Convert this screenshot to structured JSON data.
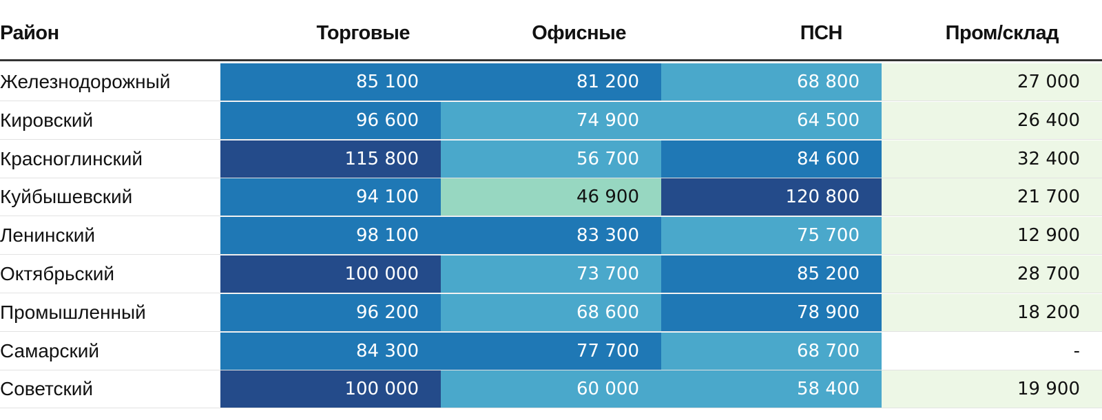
{
  "columns": [
    "Район",
    "Торговые",
    "Офисные",
    "ПСН",
    "Пром/склад"
  ],
  "colors": {
    "very_high": "#244b8a",
    "high": "#1f78b5",
    "mid": "#4aa8cb",
    "low": "#97d7c1",
    "warehouse": "#edf7e6",
    "none": "#ffffff",
    "text_light": "#ffffff",
    "text_dark": "#111111"
  },
  "chart_data": {
    "type": "table",
    "title": "",
    "columns": [
      "Район",
      "Торговые",
      "Офисные",
      "ПСН",
      "Пром/склад"
    ],
    "rows": [
      {
        "district": "Железнодорожный",
        "values": [
          "85 100",
          "81 200",
          "68 800",
          "27 000"
        ],
        "tones": [
          "high",
          "high",
          "mid",
          "warehouse"
        ]
      },
      {
        "district": "Кировский",
        "values": [
          "96 600",
          "74 900",
          "64 500",
          "26 400"
        ],
        "tones": [
          "high",
          "mid",
          "mid",
          "warehouse"
        ]
      },
      {
        "district": "Красноглинский",
        "values": [
          "115 800",
          "56 700",
          "84 600",
          "32 400"
        ],
        "tones": [
          "very_high",
          "mid",
          "high",
          "warehouse"
        ]
      },
      {
        "district": "Куйбышевский",
        "values": [
          "94 100",
          "46 900",
          "120 800",
          "21 700"
        ],
        "tones": [
          "high",
          "low",
          "very_high",
          "warehouse"
        ]
      },
      {
        "district": "Ленинский",
        "values": [
          "98 100",
          "83 300",
          "75 700",
          "12 900"
        ],
        "tones": [
          "high",
          "high",
          "mid",
          "warehouse"
        ]
      },
      {
        "district": "Октябрьский",
        "values": [
          "100 000",
          "73 700",
          "85 200",
          "28 700"
        ],
        "tones": [
          "very_high",
          "mid",
          "high",
          "warehouse"
        ]
      },
      {
        "district": "Промышленный",
        "values": [
          "96 200",
          "68 600",
          "78 900",
          "18 200"
        ],
        "tones": [
          "high",
          "mid",
          "high",
          "warehouse"
        ]
      },
      {
        "district": "Самарский",
        "values": [
          "84 300",
          "77 700",
          "68 700",
          "-"
        ],
        "tones": [
          "high",
          "high",
          "mid",
          "none"
        ]
      },
      {
        "district": "Советский",
        "values": [
          "100 000",
          "60 000",
          "58 400",
          "19 900"
        ],
        "tones": [
          "very_high",
          "mid",
          "mid",
          "warehouse"
        ]
      }
    ]
  }
}
